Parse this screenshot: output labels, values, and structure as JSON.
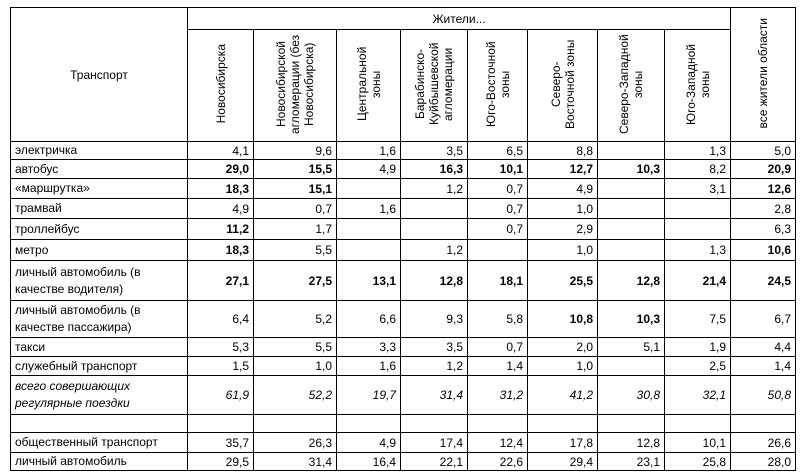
{
  "table": {
    "corner": "Транспорт",
    "group_header": "Жители...",
    "columns": [
      "Новосибирска",
      "Новосибирской агломерации (без Новосибирска)",
      "Центральной зоны",
      "Барабинско-Куйбышевской агломерации",
      "Юго-Восточной зоны",
      "Северо-Восточной зоны",
      "Северо-Западной зоны",
      "Юго-Западной зоны"
    ],
    "total_column": "все жители области",
    "rows": [
      {
        "label": "электричка",
        "cells": [
          "4,1",
          "9,6",
          "1,6",
          "3,5",
          "6,5",
          "8,8",
          null,
          "1,3",
          "5,0"
        ],
        "bold": [
          false,
          false,
          false,
          false,
          false,
          false,
          false,
          false,
          false
        ]
      },
      {
        "label": "автобус",
        "cells": [
          "29,0",
          "15,5",
          "4,9",
          "16,3",
          "10,1",
          "12,7",
          "10,3",
          "8,2",
          "20,9"
        ],
        "bold": [
          true,
          true,
          false,
          true,
          true,
          true,
          true,
          false,
          true
        ]
      },
      {
        "label": "«маршрутка»",
        "cells": [
          "18,3",
          "15,1",
          null,
          "1,2",
          "0,7",
          "4,9",
          null,
          "3,1",
          "12,6"
        ],
        "bold": [
          true,
          true,
          false,
          false,
          false,
          false,
          false,
          false,
          true
        ]
      },
      {
        "label": "трамвай",
        "cells": [
          "4,9",
          "0,7",
          "1,6",
          null,
          "0,7",
          "1,0",
          null,
          null,
          "2,8"
        ],
        "bold": [
          false,
          false,
          false,
          false,
          false,
          false,
          false,
          false,
          false
        ]
      },
      {
        "label": "троллейбус",
        "cells": [
          "11,2",
          "1,7",
          null,
          null,
          "0,7",
          "2,9",
          null,
          null,
          "6,3"
        ],
        "bold": [
          true,
          false,
          false,
          false,
          false,
          false,
          false,
          false,
          false
        ]
      },
      {
        "label": "метро",
        "cells": [
          "18,3",
          "5,5",
          null,
          "1,2",
          null,
          "1,0",
          null,
          "1,3",
          "10,6"
        ],
        "bold": [
          true,
          false,
          false,
          false,
          false,
          false,
          false,
          false,
          true
        ]
      },
      {
        "label": "личный автомобиль (в качестве водителя)",
        "cells": [
          "27,1",
          "27,5",
          "13,1",
          "12,8",
          "18,1",
          "25,5",
          "12,8",
          "21,4",
          "24,5"
        ],
        "bold": [
          true,
          true,
          true,
          true,
          true,
          true,
          true,
          true,
          true
        ]
      },
      {
        "label": "личный автомобиль (в качестве пассажира)",
        "cells": [
          "6,4",
          "5,2",
          "6,6",
          "9,3",
          "5,8",
          "10,8",
          "10,3",
          "7,5",
          "6,7"
        ],
        "bold": [
          false,
          false,
          false,
          false,
          false,
          true,
          true,
          false,
          false
        ]
      },
      {
        "label": "такси",
        "cells": [
          "5,3",
          "5,5",
          "3,3",
          "3,5",
          "0,7",
          "2,0",
          "5,1",
          "1,9",
          "4,4"
        ],
        "bold": [
          false,
          false,
          false,
          false,
          false,
          false,
          false,
          false,
          false
        ]
      },
      {
        "label": "служебный транспорт",
        "cells": [
          "1,5",
          "1,0",
          "1,6",
          "1,2",
          "1,4",
          "1,0",
          null,
          "2,5",
          "1,4"
        ],
        "bold": [
          false,
          false,
          false,
          false,
          false,
          false,
          false,
          false,
          false
        ]
      },
      {
        "label": "всего совершающих регулярные поездки",
        "cells": [
          "61,9",
          "52,2",
          "19,7",
          "31,4",
          "31,2",
          "41,2",
          "30,8",
          "32,1",
          "50,8"
        ],
        "italic": true
      },
      {
        "label": null,
        "cells": [
          null,
          null,
          null,
          null,
          null,
          null,
          null,
          null,
          null
        ]
      },
      {
        "label": "общественный транспорт",
        "cells": [
          "35,7",
          "26,3",
          "4,9",
          "17,4",
          "12,4",
          "17,8",
          "12,8",
          "10,1",
          "26,6"
        ]
      },
      {
        "label": "личный автомобиль",
        "cells": [
          "29,5",
          "31,4",
          "16,4",
          "22,1",
          "22,6",
          "29,4",
          "23,1",
          "25,8",
          "28,0"
        ]
      }
    ]
  }
}
